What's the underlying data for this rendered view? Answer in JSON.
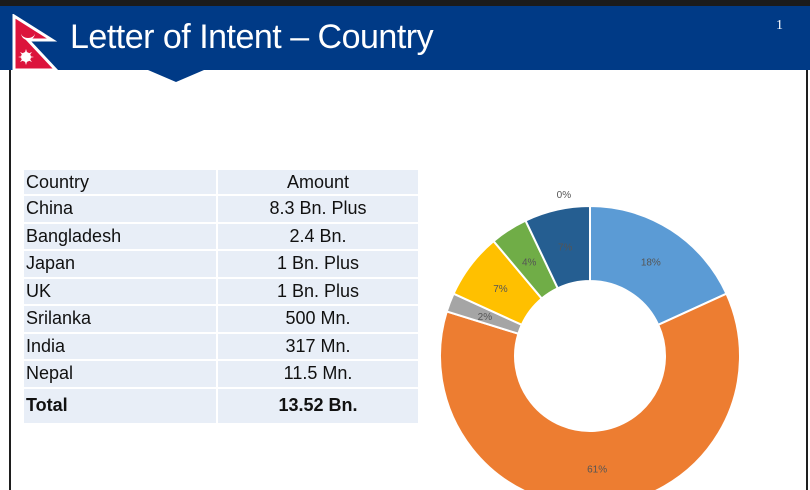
{
  "slide": {
    "title": "Letter of Intent – Country",
    "page_number": "1"
  },
  "table": {
    "header": {
      "country": "Country",
      "amount": "Amount"
    },
    "rows": [
      {
        "country": "China",
        "amount": "8.3 Bn. Plus"
      },
      {
        "country": "Bangladesh",
        "amount": "2.4 Bn."
      },
      {
        "country": "Japan",
        "amount": "1 Bn. Plus"
      },
      {
        "country": "UK",
        "amount": "1 Bn. Plus"
      },
      {
        "country": "Srilanka",
        "amount": "500 Mn."
      },
      {
        "country": "India",
        "amount": "317 Mn."
      },
      {
        "country": "Nepal",
        "amount": "11.5 Mn."
      }
    ],
    "total": {
      "label": "Total",
      "amount": "13.52 Bn."
    }
  },
  "colors": {
    "banner": "#003a86",
    "table_bg": "#e8eef7"
  },
  "chart_data": {
    "type": "pie",
    "style": "donut",
    "title": "",
    "series": [
      {
        "label": "18%",
        "value": 18,
        "color": "#5b9bd5"
      },
      {
        "label": "61%",
        "value": 61,
        "color": "#ed7d31"
      },
      {
        "label": "2%",
        "value": 2,
        "color": "#a5a5a5"
      },
      {
        "label": "7%",
        "value": 7,
        "color": "#ffc000"
      },
      {
        "label": "4%",
        "value": 4,
        "color": "#70ad47"
      },
      {
        "label": "7%",
        "value": 7,
        "color": "#255e91"
      },
      {
        "label": "0%",
        "value": 0,
        "color": "#9e480e"
      }
    ],
    "legend": "none"
  }
}
